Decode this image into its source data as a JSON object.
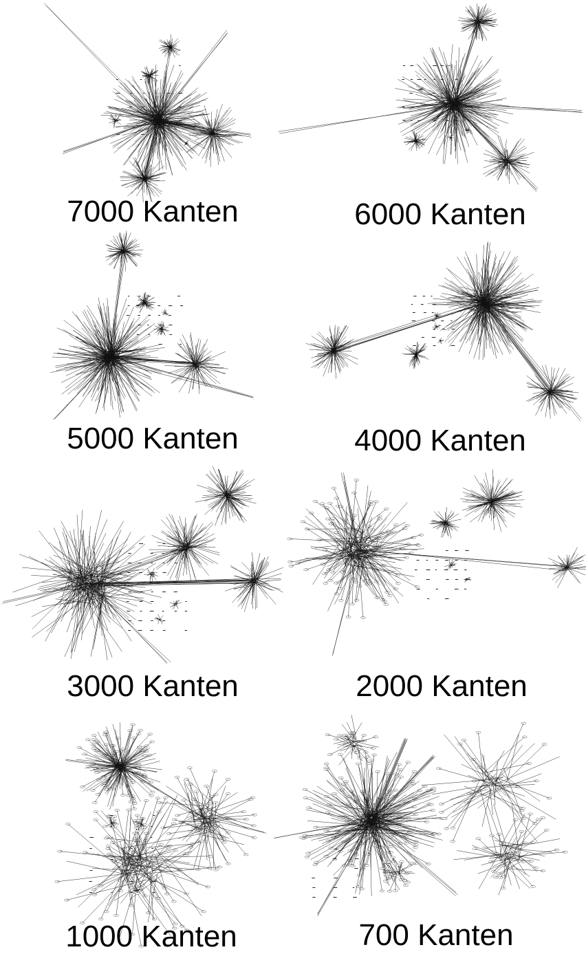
{
  "panels": [
    {
      "label": "7000 Kanten"
    },
    {
      "label": "6000 Kanten"
    },
    {
      "label": "5000 Kanten"
    },
    {
      "label": "4000 Kanten"
    },
    {
      "label": "3000 Kanten"
    },
    {
      "label": "2000 Kanten"
    },
    {
      "label": "1000 Kanten"
    },
    {
      "label": "700 Kanten"
    }
  ]
}
